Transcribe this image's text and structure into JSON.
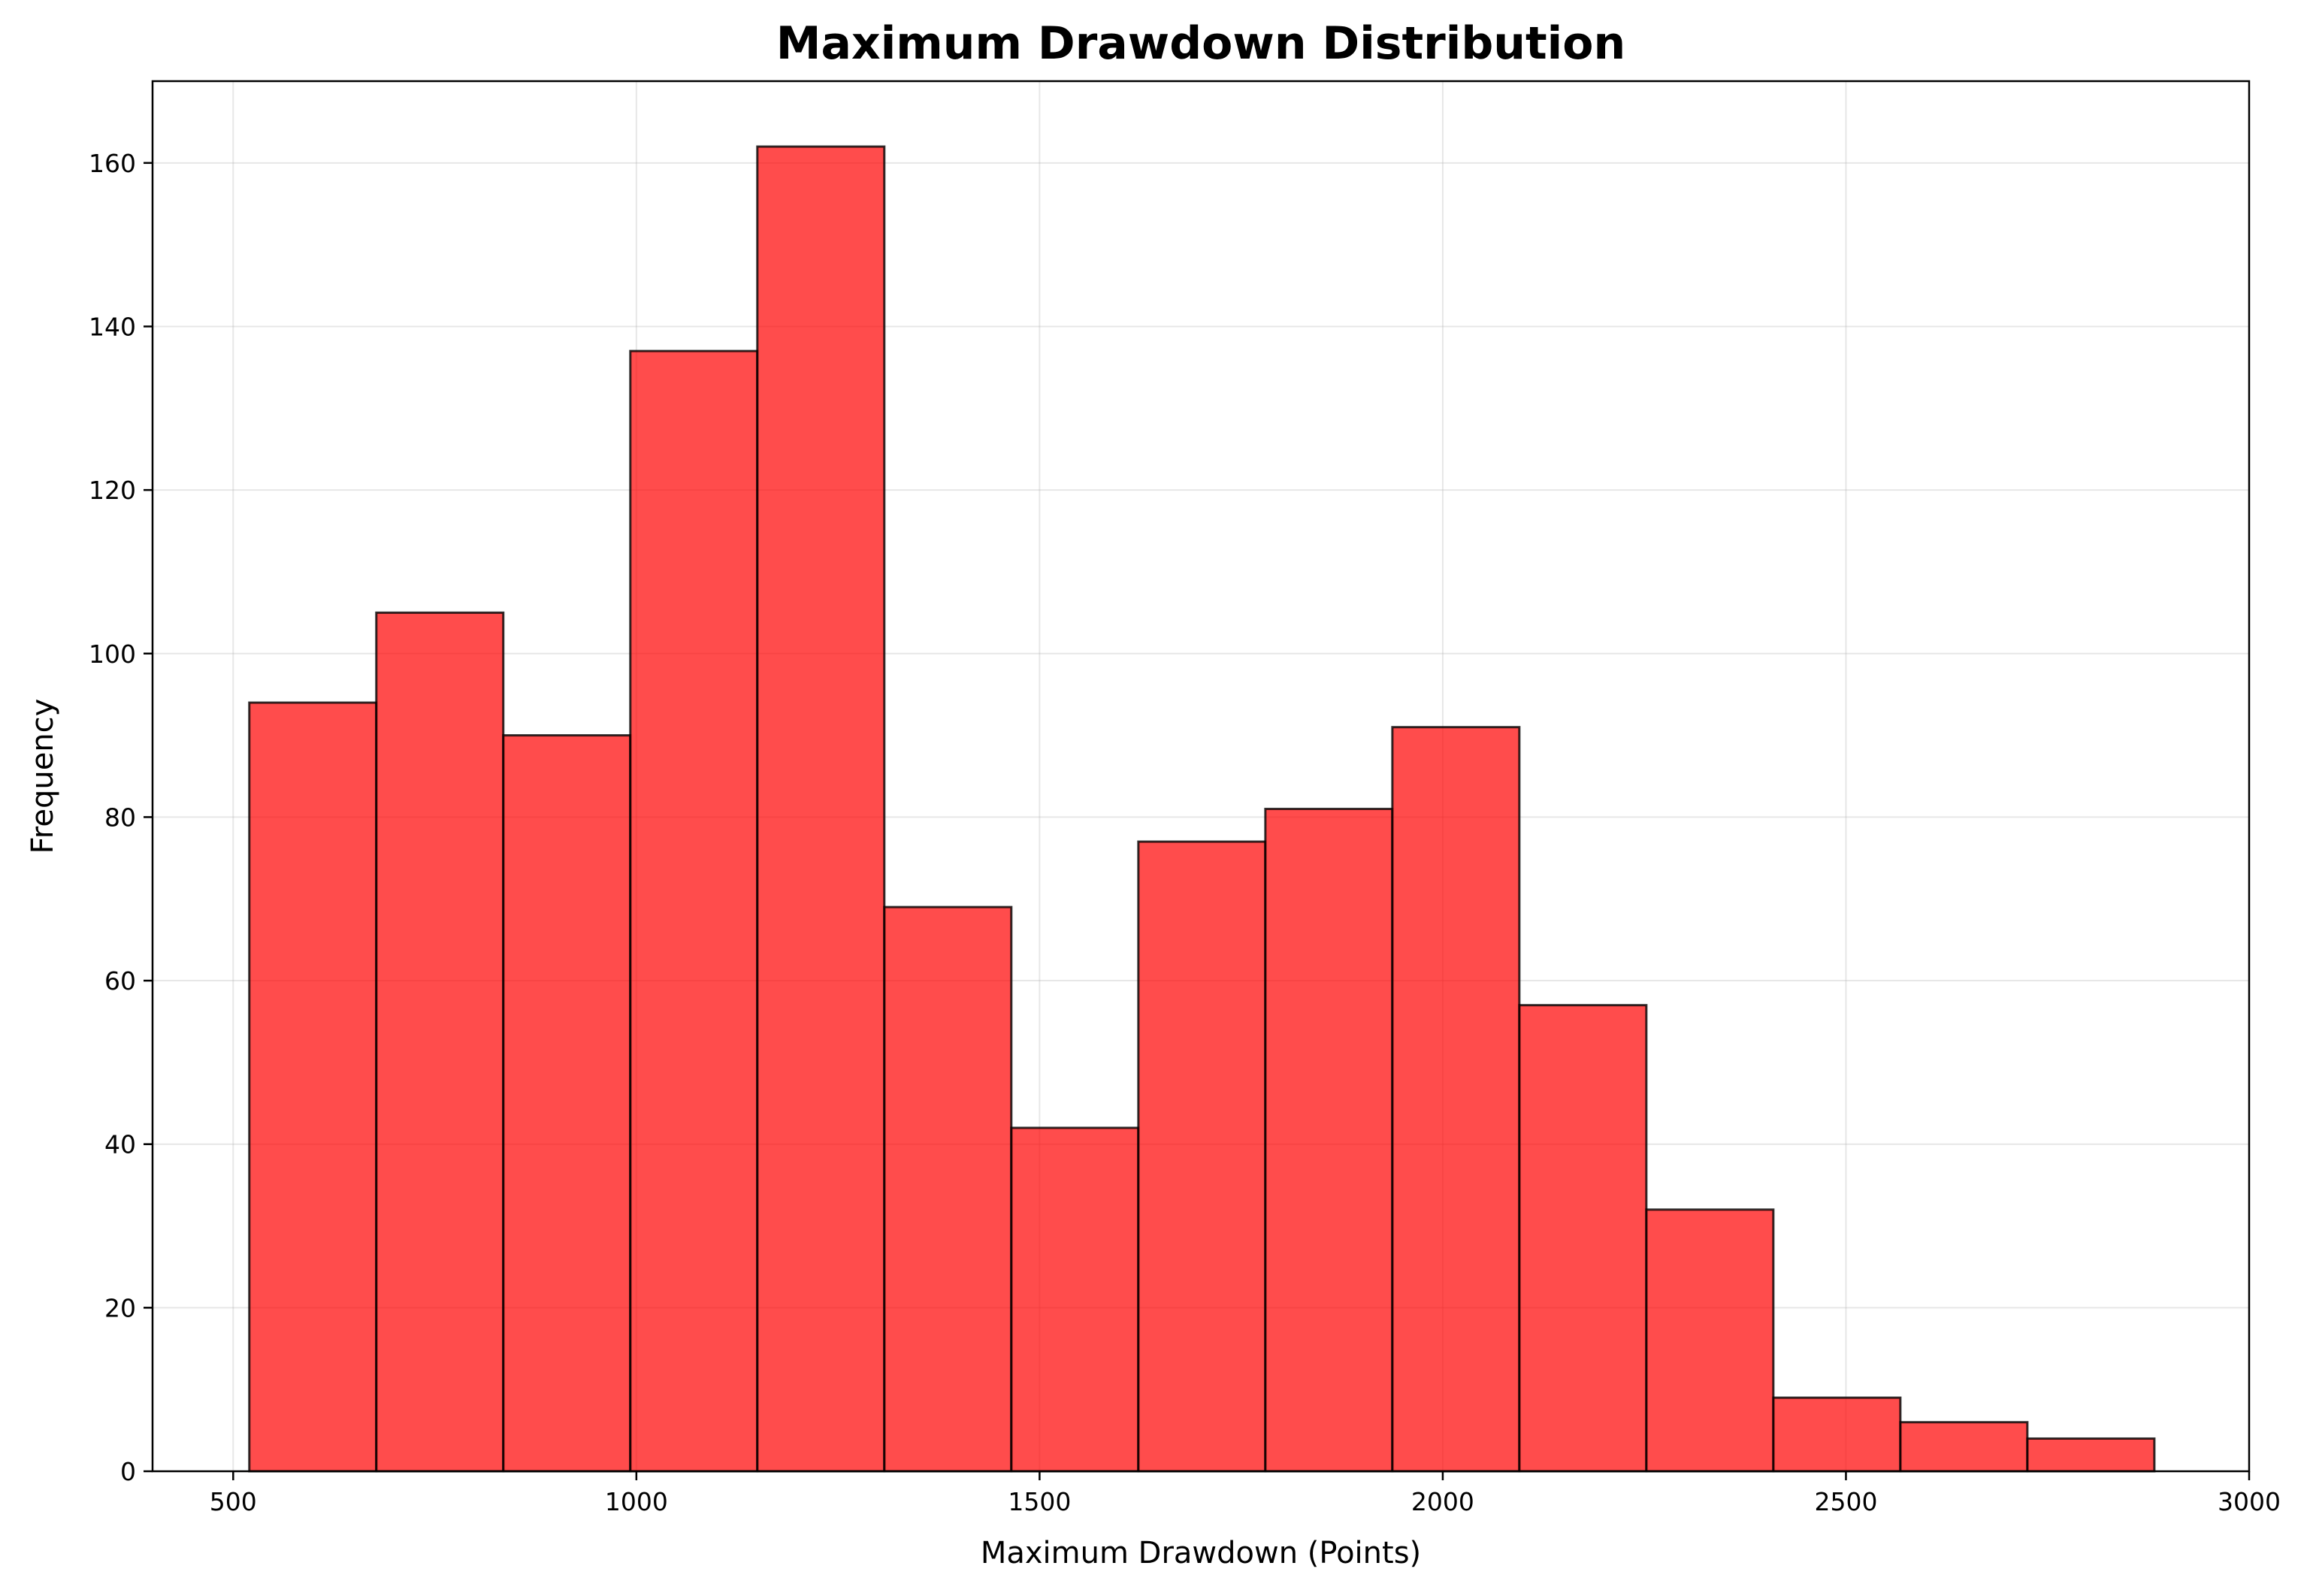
{
  "chart_data": {
    "type": "bar",
    "title": "Maximum Drawdown Distribution",
    "xlabel": "Maximum Drawdown (Points)",
    "ylabel": "Frequency",
    "bin_edges": [
      520,
      677.5,
      835,
      992.5,
      1150,
      1307.5,
      1465,
      1622.5,
      1780,
      1937.5,
      2095,
      2252.5,
      2410,
      2567.5,
      2725,
      2882.5
    ],
    "values": [
      94,
      105,
      90,
      137,
      162,
      69,
      42,
      77,
      81,
      91,
      57,
      32,
      9,
      6,
      4
    ],
    "xlim": [
      400,
      3000
    ],
    "ylim": [
      0,
      170
    ],
    "xticks": [
      500,
      1000,
      1500,
      2000,
      2500,
      3000
    ],
    "yticks": [
      0,
      20,
      40,
      60,
      80,
      100,
      120,
      140,
      160
    ],
    "grid": true,
    "bar_color": "#ff0000",
    "bar_alpha": 0.7,
    "edge_color": "#000000",
    "edge_alpha": 0.8
  }
}
